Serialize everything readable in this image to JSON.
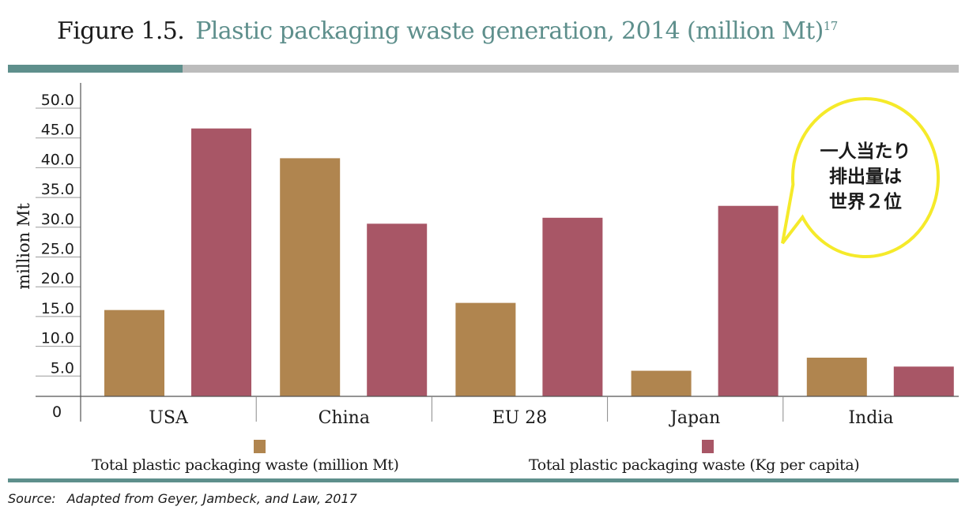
{
  "header": {
    "figure_label": "Figure  1.5.",
    "title": "Plastic packaging waste generation, 2014 (million Mt)",
    "title_footnote": "17"
  },
  "chart_data": {
    "type": "bar",
    "categories": [
      "USA",
      "China",
      "EU 28",
      "Japan",
      "India"
    ],
    "series": [
      {
        "name": "Total plastic packaging waste (million Mt)",
        "color": "#b0854f",
        "values": [
          14.5,
          40.0,
          15.7,
          4.3,
          6.5
        ]
      },
      {
        "name": "Total plastic packaging waste (Kg per capita)",
        "color": "#a85666",
        "values": [
          45.0,
          29.0,
          30.0,
          32.0,
          5.0
        ]
      }
    ],
    "ylabel": "million Mt",
    "ylim": [
      0,
      50
    ],
    "yticks": [
      "5.0",
      "10.0",
      "15.0",
      "20.0",
      "25.0",
      "30.0",
      "35.0",
      "40.0",
      "45.0",
      "50.0"
    ],
    "zero_label": "0",
    "legend_position": "bottom"
  },
  "callout": {
    "text": "一人当たり\n排出量は\n世界２位",
    "border_color": "#f5ea2a"
  },
  "footer": {
    "source_label": "Source:",
    "source_text": "Adapted from Geyer, Jambeck, and Law, 2017"
  }
}
